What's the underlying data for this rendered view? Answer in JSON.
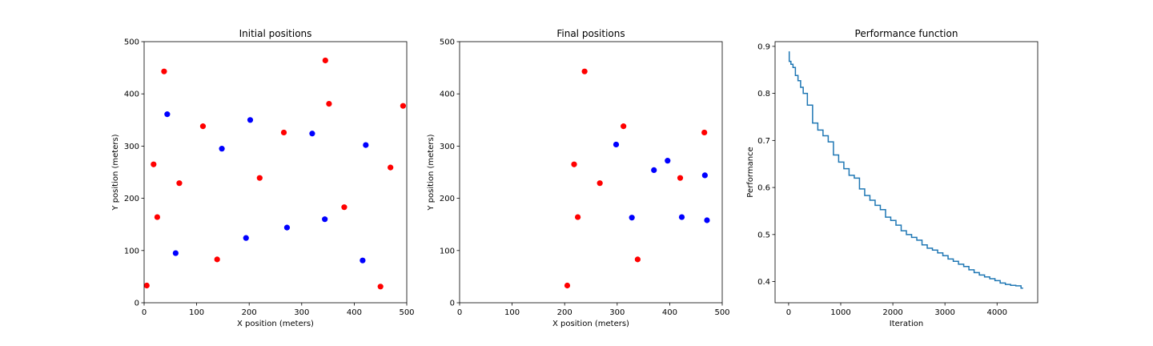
{
  "chart_data": [
    {
      "type": "scatter",
      "title": "Initial positions",
      "xlabel": "X position (meters)",
      "ylabel": "Y position (meters)",
      "xlim": [
        0,
        500
      ],
      "ylim": [
        0,
        500
      ],
      "xticks": [
        0,
        100,
        200,
        300,
        400,
        500
      ],
      "yticks": [
        0,
        100,
        200,
        300,
        400,
        500
      ],
      "grid": false,
      "series": [
        {
          "color": "#ff0000",
          "points": [
            [
              5,
              33
            ],
            [
              18,
              265
            ],
            [
              25,
              164
            ],
            [
              38,
              443
            ],
            [
              67,
              229
            ],
            [
              112,
              338
            ],
            [
              139,
              83
            ],
            [
              220,
              239
            ],
            [
              266,
              326
            ],
            [
              345,
              464
            ],
            [
              352,
              381
            ],
            [
              381,
              183
            ],
            [
              450,
              31
            ],
            [
              469,
              259
            ],
            [
              493,
              377
            ]
          ]
        },
        {
          "color": "#0000ff",
          "points": [
            [
              44,
              361
            ],
            [
              60,
              95
            ],
            [
              148,
              295
            ],
            [
              194,
              124
            ],
            [
              202,
              350
            ],
            [
              272,
              144
            ],
            [
              320,
              324
            ],
            [
              344,
              160
            ],
            [
              416,
              81
            ],
            [
              422,
              302
            ]
          ]
        }
      ]
    },
    {
      "type": "scatter",
      "title": "Final positions",
      "xlabel": "X position (meters)",
      "ylabel": "Y position (meters)",
      "xlim": [
        0,
        500
      ],
      "ylim": [
        0,
        500
      ],
      "xticks": [
        0,
        100,
        200,
        300,
        400,
        500
      ],
      "yticks": [
        0,
        100,
        200,
        300,
        400,
        500
      ],
      "grid": false,
      "series": [
        {
          "color": "#ff0000",
          "points": [
            [
              205,
              33
            ],
            [
              218,
              265
            ],
            [
              225,
              164
            ],
            [
              238,
              443
            ],
            [
              267,
              229
            ],
            [
              312,
              338
            ],
            [
              339,
              83
            ],
            [
              420,
              239
            ],
            [
              466,
              326
            ]
          ]
        },
        {
          "color": "#0000ff",
          "points": [
            [
              298,
              303
            ],
            [
              328,
              163
            ],
            [
              370,
              254
            ],
            [
              396,
              272
            ],
            [
              423,
              164
            ],
            [
              467,
              244
            ],
            [
              471,
              158
            ]
          ]
        }
      ]
    },
    {
      "type": "line",
      "title": "Performance function",
      "xlabel": "Iteration",
      "ylabel": "Performance",
      "xlim": [
        -260,
        4780
      ],
      "ylim": [
        0.355,
        0.91
      ],
      "xticks": [
        0,
        1000,
        2000,
        3000,
        4000
      ],
      "yticks": [
        0.4,
        0.5,
        0.6,
        0.7,
        0.8,
        0.9
      ],
      "ytick_labels": [
        "0.4",
        "0.5",
        "0.6",
        "0.7",
        "0.8",
        "0.9"
      ],
      "grid": false,
      "series": [
        {
          "color": "#1f77b4",
          "x": [
            0,
            20,
            60,
            100,
            150,
            200,
            250,
            300,
            400,
            500,
            600,
            700,
            800,
            900,
            1000,
            1100,
            1200,
            1300,
            1400,
            1500,
            1600,
            1700,
            1800,
            1900,
            2000,
            2100,
            2200,
            2300,
            2400,
            2500,
            2600,
            2700,
            2800,
            2900,
            3000,
            3100,
            3200,
            3300,
            3400,
            3500,
            3600,
            3700,
            3800,
            3900,
            4000,
            4100,
            4200,
            4300,
            4400,
            4500
          ],
          "y": [
            0.888,
            0.868,
            0.862,
            0.855,
            0.838,
            0.827,
            0.813,
            0.8,
            0.775,
            0.737,
            0.722,
            0.71,
            0.697,
            0.669,
            0.654,
            0.64,
            0.626,
            0.62,
            0.597,
            0.583,
            0.573,
            0.562,
            0.553,
            0.537,
            0.53,
            0.52,
            0.508,
            0.5,
            0.494,
            0.488,
            0.478,
            0.471,
            0.467,
            0.461,
            0.455,
            0.448,
            0.443,
            0.437,
            0.432,
            0.425,
            0.419,
            0.414,
            0.41,
            0.406,
            0.402,
            0.397,
            0.394,
            0.392,
            0.391,
            0.386
          ]
        }
      ]
    }
  ]
}
